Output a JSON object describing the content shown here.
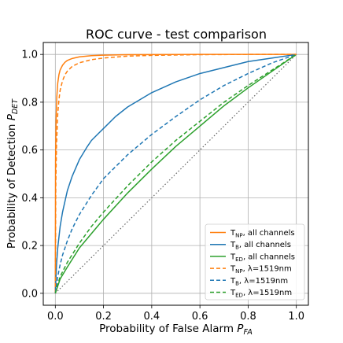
{
  "chart_data": {
    "type": "line",
    "title": "ROC curve - test comparison",
    "xlabel": {
      "main": "Probability of False Alarm ",
      "var": "P",
      "sub": "FA"
    },
    "ylabel": {
      "main": "Probability of Detection ",
      "var": "P",
      "sub": "DET"
    },
    "xlim": [
      -0.05,
      1.05
    ],
    "ylim": [
      -0.05,
      1.05
    ],
    "xticks": [
      0.0,
      0.2,
      0.4,
      0.6,
      0.8,
      1.0
    ],
    "yticks": [
      0.0,
      0.2,
      0.4,
      0.6,
      0.8,
      1.0
    ],
    "xtick_labels": [
      "0.0",
      "0.2",
      "0.4",
      "0.6",
      "0.8",
      "1.0"
    ],
    "ytick_labels": [
      "0.0",
      "0.2",
      "0.4",
      "0.6",
      "0.8",
      "1.0"
    ],
    "grid": true,
    "legend_position": "bottom-right",
    "reference_line": {
      "style": "dotted",
      "color": "#666666",
      "x": [
        0,
        1
      ],
      "y": [
        0,
        1
      ]
    },
    "series": [
      {
        "name": "T_NP, all channels",
        "label_base": "T",
        "label_sub": "NP",
        "label_rest": ", all channels",
        "color": "#ff7f0e",
        "dash": "solid",
        "x": [
          0,
          0.001,
          0.003,
          0.006,
          0.01,
          0.015,
          0.02,
          0.03,
          0.04,
          0.05,
          0.07,
          0.1,
          0.15,
          0.2,
          0.3,
          0.4,
          0.6,
          0.8,
          1.0
        ],
        "y": [
          0,
          0.55,
          0.72,
          0.82,
          0.88,
          0.915,
          0.935,
          0.955,
          0.967,
          0.975,
          0.983,
          0.99,
          0.995,
          0.997,
          0.999,
          0.9995,
          1.0,
          1.0,
          1.0
        ]
      },
      {
        "name": "T_B, all channels",
        "label_base": "T",
        "label_sub": "B",
        "label_rest": ", all channels",
        "color": "#1f77b4",
        "dash": "solid",
        "x": [
          0,
          0.005,
          0.01,
          0.02,
          0.03,
          0.05,
          0.07,
          0.1,
          0.13,
          0.15,
          0.2,
          0.25,
          0.3,
          0.35,
          0.4,
          0.5,
          0.6,
          0.7,
          0.8,
          0.9,
          1.0
        ],
        "y": [
          0,
          0.12,
          0.19,
          0.28,
          0.34,
          0.43,
          0.49,
          0.56,
          0.61,
          0.64,
          0.69,
          0.74,
          0.78,
          0.81,
          0.84,
          0.885,
          0.92,
          0.945,
          0.97,
          0.985,
          1.0
        ]
      },
      {
        "name": "T_ED, all channels",
        "label_base": "T",
        "label_sub": "ED",
        "label_rest": ", all channels",
        "color": "#2ca02c",
        "dash": "solid",
        "x": [
          0,
          0.02,
          0.05,
          0.1,
          0.15,
          0.2,
          0.3,
          0.4,
          0.5,
          0.6,
          0.7,
          0.8,
          0.9,
          1.0
        ],
        "y": [
          0,
          0.06,
          0.11,
          0.19,
          0.25,
          0.31,
          0.42,
          0.52,
          0.615,
          0.7,
          0.785,
          0.86,
          0.93,
          1.0
        ]
      },
      {
        "name": "T_NP, λ=1519nm",
        "label_base": "T",
        "label_sub": "NP",
        "label_rest": ", λ=1519nm",
        "color": "#ff7f0e",
        "dash": "dashed",
        "x": [
          0,
          0.002,
          0.005,
          0.01,
          0.015,
          0.02,
          0.03,
          0.04,
          0.05,
          0.07,
          0.1,
          0.15,
          0.2,
          0.3,
          0.4,
          0.6,
          0.8,
          1.0
        ],
        "y": [
          0,
          0.45,
          0.62,
          0.75,
          0.81,
          0.85,
          0.89,
          0.915,
          0.93,
          0.95,
          0.965,
          0.978,
          0.985,
          0.993,
          0.996,
          0.999,
          1.0,
          1.0
        ]
      },
      {
        "name": "T_B, λ=1519nm",
        "label_base": "T",
        "label_sub": "B",
        "label_rest": ", λ=1519nm",
        "color": "#1f77b4",
        "dash": "dashed",
        "x": [
          0,
          0.01,
          0.02,
          0.03,
          0.05,
          0.07,
          0.1,
          0.15,
          0.2,
          0.25,
          0.3,
          0.4,
          0.5,
          0.6,
          0.7,
          0.8,
          0.9,
          1.0
        ],
        "y": [
          0,
          0.07,
          0.12,
          0.16,
          0.22,
          0.27,
          0.33,
          0.41,
          0.48,
          0.53,
          0.58,
          0.665,
          0.74,
          0.81,
          0.87,
          0.92,
          0.965,
          1.0
        ]
      },
      {
        "name": "T_ED, λ=1519nm",
        "label_base": "T",
        "label_sub": "ED",
        "label_rest": ", λ=1519nm",
        "color": "#2ca02c",
        "dash": "dashed",
        "x": [
          0,
          0.02,
          0.05,
          0.1,
          0.15,
          0.2,
          0.3,
          0.4,
          0.5,
          0.6,
          0.7,
          0.8,
          0.9,
          1.0
        ],
        "y": [
          0,
          0.07,
          0.13,
          0.21,
          0.28,
          0.34,
          0.45,
          0.55,
          0.64,
          0.72,
          0.8,
          0.87,
          0.935,
          1.0
        ]
      }
    ]
  }
}
